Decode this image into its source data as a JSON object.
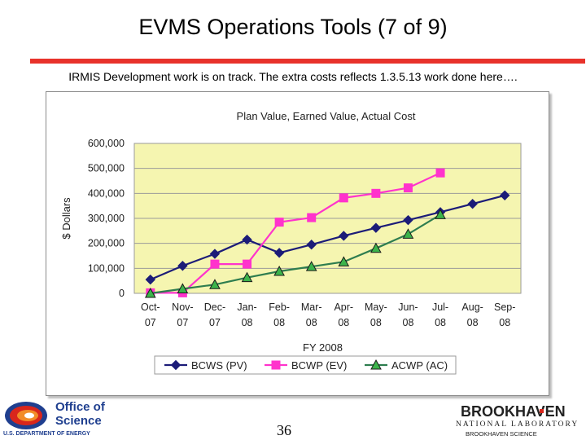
{
  "slide": {
    "title": "EVMS Operations Tools (7 of 9)",
    "subtitle": "IRMIS Development work is on track. The extra costs reflects 1.3.5.13 work done here….",
    "page_number": "36",
    "accent_color": "#e8322b"
  },
  "logos": {
    "left_line1": "Office of",
    "left_line2": "Science",
    "left_line3": "U.S. DEPARTMENT OF ENERGY",
    "right_line1": "BROOKHAVEN",
    "right_line2": "NATIONAL LABORATORY",
    "right_line3": "BROOKHAVEN SCIENCE"
  },
  "chart_data": {
    "type": "line",
    "title": "Plan Value, Earned Value, Actual Cost",
    "xlabel": "FY 2008",
    "ylabel": "$ Dollars",
    "ylim": [
      0,
      600000
    ],
    "yticks": [
      0,
      100000,
      200000,
      300000,
      400000,
      500000,
      600000
    ],
    "ytick_labels": [
      "0",
      "100,000",
      "200,000",
      "300,000",
      "400,000",
      "500,000",
      "600,000"
    ],
    "categories": [
      "Oct-07",
      "Nov-07",
      "Dec-07",
      "Jan-08",
      "Feb-08",
      "Mar-08",
      "Apr-08",
      "May-08",
      "Jun-08",
      "Jul-08",
      "Aug-08",
      "Sep-08"
    ],
    "category_lines": [
      [
        "Oct-",
        "07"
      ],
      [
        "Nov-",
        "07"
      ],
      [
        "Dec-",
        "07"
      ],
      [
        "Jan-",
        "08"
      ],
      [
        "Feb-",
        "08"
      ],
      [
        "Mar-",
        "08"
      ],
      [
        "Apr-",
        "08"
      ],
      [
        "May-",
        "08"
      ],
      [
        "Jun-",
        "08"
      ],
      [
        "Jul-",
        "08"
      ],
      [
        "Aug-",
        "08"
      ],
      [
        "Sep-",
        "08"
      ]
    ],
    "plot_background": "#f5f5b0",
    "grid": true,
    "legend_position": "bottom",
    "series": [
      {
        "name": "BCWS (PV)",
        "color": "#1c1c78",
        "marker": "diamond",
        "values": [
          55000,
          110000,
          158000,
          215000,
          162000,
          195000,
          230000,
          262000,
          293000,
          325000,
          358000,
          392000
        ]
      },
      {
        "name": "BCWP (EV)",
        "color": "#ff33cc",
        "marker": "square",
        "values": [
          2000,
          2000,
          117000,
          117000,
          285000,
          303000,
          382000,
          400000,
          422000,
          482000,
          null,
          null
        ]
      },
      {
        "name": "ACWP (AC)",
        "color": "#2e7d4f",
        "marker": "triangle",
        "marker_fill": "#3cb44b",
        "values": [
          0,
          18000,
          35000,
          63000,
          88000,
          107000,
          126000,
          180000,
          237000,
          315000,
          null,
          null
        ]
      }
    ]
  }
}
